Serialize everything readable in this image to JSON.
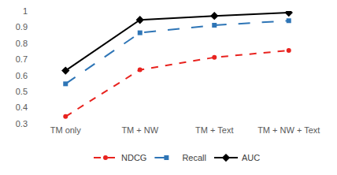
{
  "chart_data": {
    "type": "line",
    "categories": [
      "TM only",
      "TM + NW",
      "TM + Text",
      "TM + NW + Text"
    ],
    "series": [
      {
        "name": "NDCG",
        "color": "#e8231f",
        "marker": "circle",
        "line_style": "dash",
        "values": [
          0.345,
          0.635,
          0.712,
          0.755
        ]
      },
      {
        "name": "Recall",
        "color": "#2e75b6",
        "marker": "square",
        "line_style": "longdash",
        "values": [
          0.548,
          0.865,
          0.912,
          0.94
        ]
      },
      {
        "name": "AUC",
        "color": "#000000",
        "marker": "diamond",
        "line_style": "solid",
        "values": [
          0.63,
          0.945,
          0.97,
          0.99
        ]
      }
    ],
    "ylim": [
      0.3,
      1
    ],
    "yticks": [
      0.3,
      0.4,
      0.5,
      0.6,
      0.7,
      0.8,
      0.9,
      1
    ],
    "grid": false,
    "legend": "bottom"
  }
}
